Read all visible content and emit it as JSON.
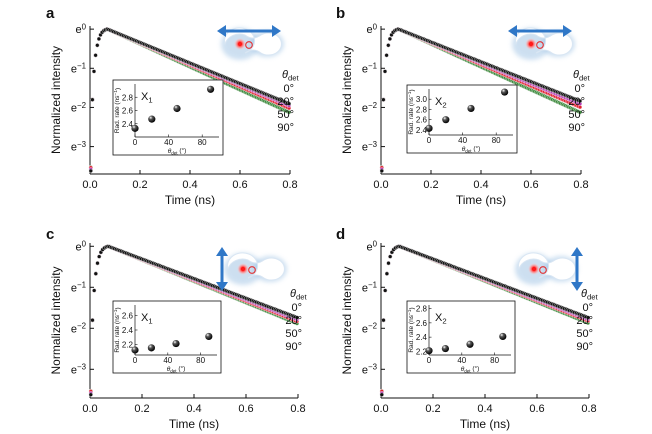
{
  "figure": {
    "legend_title": "θdet",
    "palette": {
      "black": "#111111",
      "magenta": "#b53ab5",
      "red": "#e0202e",
      "green": "#3f8a3f",
      "arrow": "#2f77c7",
      "glow": "#9cc1e3"
    }
  },
  "chart_data": [
    {
      "panel": "a",
      "type": "scatter",
      "xlabel": "Time (ns)",
      "ylabel": "Normalized intensity",
      "xlim": [
        0,
        0.8
      ],
      "xticks": [
        "0.0",
        "0.2",
        "0.4",
        "0.6",
        "0.8"
      ],
      "yticks": [
        "e0",
        "e−1",
        "e−2",
        "e−3"
      ],
      "ylog_base_e": true,
      "legend_title": "θdet",
      "series": [
        {
          "name": "0°",
          "color": "#111111",
          "decay_rate_per_ns": 2.85,
          "peak_time_ns": 0.07
        },
        {
          "name": "20°",
          "color": "#b53ab5",
          "decay_rate_per_ns": 2.92,
          "peak_time_ns": 0.07
        },
        {
          "name": "50°",
          "color": "#e0202e",
          "decay_rate_per_ns": 3.02,
          "peak_time_ns": 0.07
        },
        {
          "name": "90°",
          "color": "#3f8a3f",
          "decay_rate_per_ns": 3.18,
          "peak_time_ns": 0.07
        }
      ],
      "dipole_direction": "horizontal",
      "inset": {
        "title": "X1",
        "xlabel": "θdet (°)",
        "ylabel": "Rad. rate (ns−1)",
        "xlim": [
          0,
          100
        ],
        "xticks": [
          "0",
          "40",
          "80"
        ],
        "ylim": [
          2.2,
          3.0
        ],
        "yticks": [
          "2.4",
          "2.6",
          "2.8"
        ],
        "x": [
          0,
          20,
          50,
          90
        ],
        "y": [
          2.33,
          2.47,
          2.63,
          2.92
        ]
      }
    },
    {
      "panel": "b",
      "type": "scatter",
      "xlabel": "Time (ns)",
      "ylabel": "Normalized intensity",
      "xlim": [
        0,
        0.8
      ],
      "xticks": [
        "0.0",
        "0.2",
        "0.4",
        "0.6",
        "0.8"
      ],
      "yticks": [
        "e0",
        "e−1",
        "e−2",
        "e−3"
      ],
      "ylog_base_e": true,
      "legend_title": "θdet",
      "series": [
        {
          "name": "0°",
          "color": "#111111",
          "decay_rate_per_ns": 2.75,
          "peak_time_ns": 0.07
        },
        {
          "name": "20°",
          "color": "#b53ab5",
          "decay_rate_per_ns": 2.85,
          "peak_time_ns": 0.07
        },
        {
          "name": "50°",
          "color": "#e0202e",
          "decay_rate_per_ns": 2.98,
          "peak_time_ns": 0.07
        },
        {
          "name": "90°",
          "color": "#3f8a3f",
          "decay_rate_per_ns": 3.18,
          "peak_time_ns": 0.07
        }
      ],
      "dipole_direction": "horizontal",
      "inset": {
        "title": "X2",
        "xlabel": "θdet (°)",
        "ylabel": "Rad. rate (ns−1)",
        "xlim": [
          0,
          100
        ],
        "xticks": [
          "0",
          "40",
          "80"
        ],
        "ylim": [
          2.3,
          3.2
        ],
        "yticks": [
          "2.4",
          "2.6",
          "2.8",
          "3.0"
        ],
        "x": [
          0,
          20,
          50,
          90
        ],
        "y": [
          2.43,
          2.6,
          2.82,
          3.14
        ]
      }
    },
    {
      "panel": "c",
      "type": "scatter",
      "xlabel": "Time (ns)",
      "ylabel": "Normalized intensity",
      "xlim": [
        0,
        0.8
      ],
      "xticks": [
        "0.0",
        "0.2",
        "0.4",
        "0.6",
        "0.8"
      ],
      "yticks": [
        "e0",
        "e−1",
        "e−2",
        "e−3"
      ],
      "ylog_base_e": true,
      "legend_title": "θdet",
      "series": [
        {
          "name": "0°",
          "color": "#111111",
          "decay_rate_per_ns": 2.6,
          "peak_time_ns": 0.07
        },
        {
          "name": "20°",
          "color": "#b53ab5",
          "decay_rate_per_ns": 2.67,
          "peak_time_ns": 0.07
        },
        {
          "name": "50°",
          "color": "#e0202e",
          "decay_rate_per_ns": 2.74,
          "peak_time_ns": 0.07
        },
        {
          "name": "90°",
          "color": "#3f8a3f",
          "decay_rate_per_ns": 2.82,
          "peak_time_ns": 0.07
        }
      ],
      "dipole_direction": "vertical",
      "inset": {
        "title": "X1",
        "xlabel": "θdet (°)",
        "ylabel": "Rad. rate (ns−1)",
        "xlim": [
          0,
          100
        ],
        "xticks": [
          "0",
          "40",
          "80"
        ],
        "ylim": [
          2.05,
          2.75
        ],
        "yticks": [
          "2.2",
          "2.4",
          "2.6"
        ],
        "x": [
          0,
          20,
          50,
          90
        ],
        "y": [
          2.12,
          2.15,
          2.21,
          2.31
        ]
      }
    },
    {
      "panel": "d",
      "type": "scatter",
      "xlabel": "Time (ns)",
      "ylabel": "Normalized intensity",
      "xlim": [
        0,
        0.8
      ],
      "xticks": [
        "0.0",
        "0.2",
        "0.4",
        "0.6",
        "0.8"
      ],
      "yticks": [
        "e0",
        "e−1",
        "e−2",
        "e−3"
      ],
      "ylog_base_e": true,
      "legend_title": "θdet",
      "series": [
        {
          "name": "0°",
          "color": "#111111",
          "decay_rate_per_ns": 2.6,
          "peak_time_ns": 0.07
        },
        {
          "name": "20°",
          "color": "#b53ab5",
          "decay_rate_per_ns": 2.66,
          "peak_time_ns": 0.07
        },
        {
          "name": "50°",
          "color": "#e0202e",
          "decay_rate_per_ns": 2.72,
          "peak_time_ns": 0.07
        },
        {
          "name": "90°",
          "color": "#3f8a3f",
          "decay_rate_per_ns": 2.8,
          "peak_time_ns": 0.07
        }
      ],
      "dipole_direction": "vertical",
      "inset": {
        "title": "X2",
        "xlabel": "θdet (°)",
        "ylabel": "Rad. rate (ns−1)",
        "xlim": [
          0,
          100
        ],
        "xticks": [
          "0",
          "40",
          "80"
        ],
        "ylim": [
          2.15,
          2.85
        ],
        "yticks": [
          "2.2",
          "2.4",
          "2.6",
          "2.8"
        ],
        "x": [
          0,
          20,
          50,
          90
        ],
        "y": [
          2.21,
          2.24,
          2.3,
          2.41
        ]
      }
    }
  ]
}
